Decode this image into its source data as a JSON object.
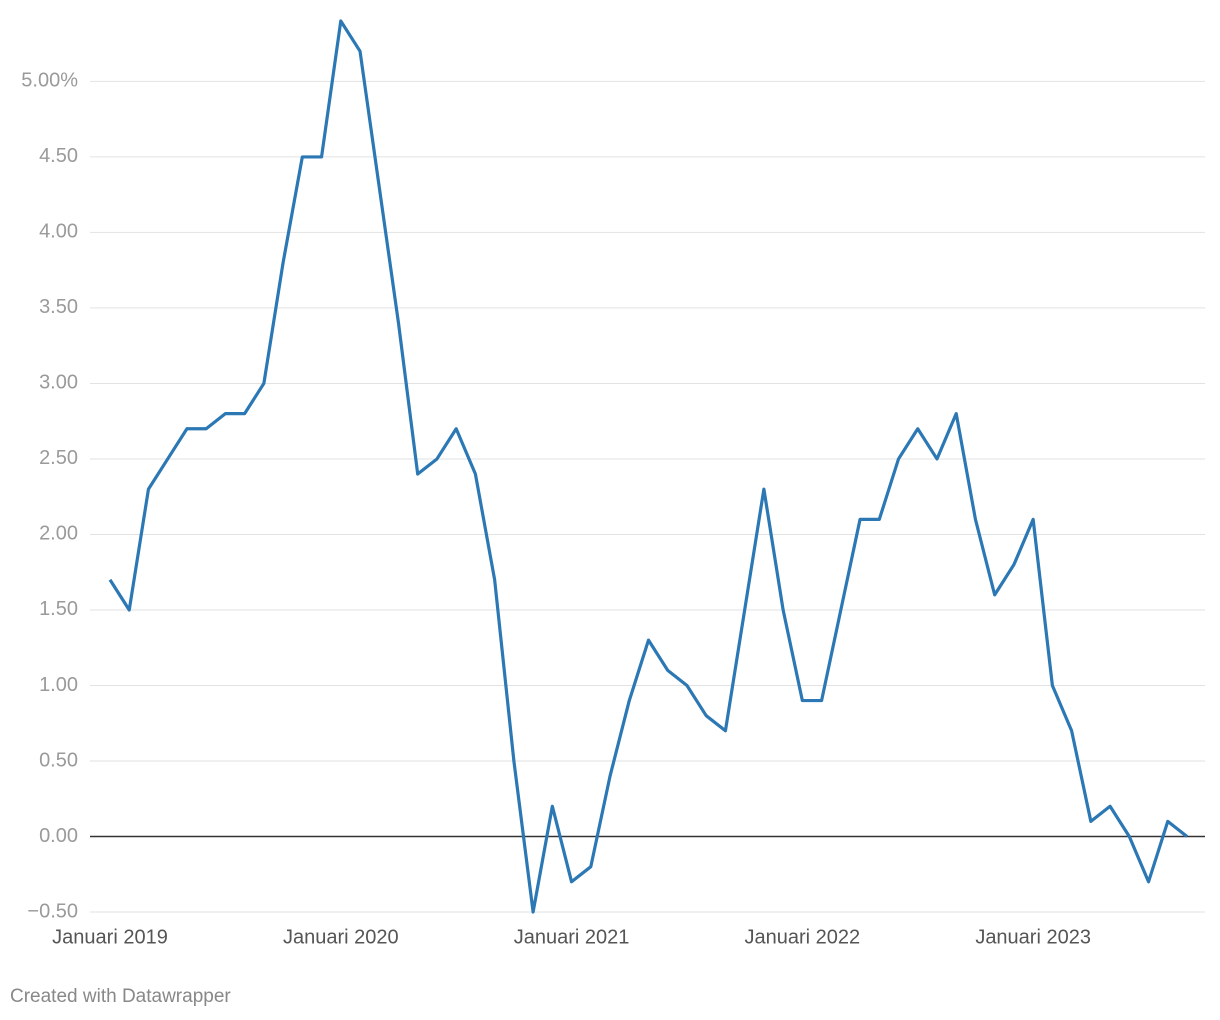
{
  "chart_data": {
    "type": "line",
    "categories": [
      "Januari 2019",
      null,
      null,
      null,
      null,
      null,
      null,
      null,
      null,
      null,
      null,
      null,
      "Januari 2020",
      null,
      null,
      null,
      null,
      null,
      null,
      null,
      null,
      null,
      null,
      null,
      "Januari 2021",
      null,
      null,
      null,
      null,
      null,
      null,
      null,
      null,
      null,
      null,
      null,
      "Januari 2022",
      null,
      null,
      null,
      null,
      null,
      null,
      null,
      null,
      null,
      null,
      null,
      "Januari 2023",
      null,
      null,
      null,
      null,
      null,
      null,
      null,
      null
    ],
    "series": [
      {
        "color": "#2b78b4",
        "values": [
          1.7,
          1.5,
          2.3,
          2.5,
          2.7,
          2.7,
          2.8,
          2.8,
          3.0,
          3.8,
          4.5,
          4.5,
          5.4,
          5.2,
          4.3,
          3.4,
          2.4,
          2.5,
          2.7,
          2.4,
          1.7,
          0.5,
          -0.5,
          0.2,
          -0.3,
          -0.2,
          0.4,
          0.9,
          1.3,
          1.1,
          1.0,
          0.8,
          0.7,
          1.5,
          2.3,
          1.5,
          0.9,
          0.9,
          1.5,
          2.1,
          2.1,
          2.5,
          2.7,
          2.5,
          2.8,
          2.1,
          1.6,
          1.8,
          2.1,
          1.0,
          0.7,
          0.1,
          0.2,
          0.0,
          -0.3,
          0.1,
          0.0
        ]
      }
    ],
    "ylim": [
      -0.5,
      5.4
    ],
    "yticks": [
      {
        "value": -0.5,
        "label": "−0.50"
      },
      {
        "value": 0,
        "label": "0.00"
      },
      {
        "value": 0.5,
        "label": "0.50"
      },
      {
        "value": 1,
        "label": "1.00"
      },
      {
        "value": 1.5,
        "label": "1.50"
      },
      {
        "value": 2,
        "label": "2.00"
      },
      {
        "value": 2.5,
        "label": "2.50"
      },
      {
        "value": 3,
        "label": "3.00"
      },
      {
        "value": 3.5,
        "label": "3.50"
      },
      {
        "value": 4,
        "label": "4.00"
      },
      {
        "value": 4.5,
        "label": "4.50"
      },
      {
        "value": 5,
        "label": "5.00%"
      }
    ],
    "grid": true,
    "credit": "Created with Datawrapper"
  }
}
